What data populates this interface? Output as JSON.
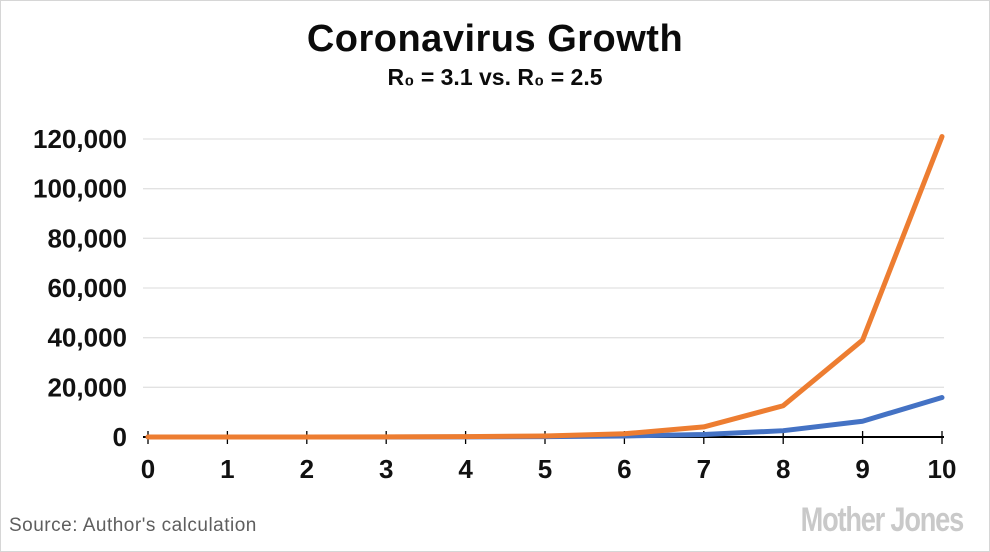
{
  "header": {
    "title": "Coronavirus Growth",
    "subtitle": "R₀ = 3.1 vs. R₀ = 2.5"
  },
  "footer": {
    "source": "Source: Author's calculation",
    "brand": "Mother Jones"
  },
  "chart_data": {
    "type": "line",
    "title": "Coronavirus Growth",
    "subtitle": "R₀ = 3.1 vs. R₀ = 2.5",
    "x": [
      0,
      1,
      2,
      3,
      4,
      5,
      6,
      7,
      8,
      9,
      10
    ],
    "xtick_labels": [
      "0",
      "1",
      "2",
      "3",
      "4",
      "5",
      "6",
      "7",
      "8",
      "9",
      "10"
    ],
    "series": [
      {
        "name": "R0 = 3.1",
        "color": "#ED7D31",
        "values": [
          1,
          4,
          14,
          44,
          136,
          422,
          1310,
          4061,
          12590,
          39029,
          120992
        ]
      },
      {
        "name": "R0 = 2.5",
        "color": "#4472C4",
        "values": [
          1,
          4,
          10,
          25,
          64,
          162,
          406,
          1017,
          2542,
          6357,
          15894
        ]
      }
    ],
    "ylim": [
      0,
      120000
    ],
    "yticks": [
      0,
      20000,
      40000,
      60000,
      80000,
      100000,
      120000
    ],
    "ytick_labels": [
      "0",
      "20,000",
      "40,000",
      "60,000",
      "80,000",
      "100,000",
      "120,000"
    ],
    "grid": true,
    "legend": "none",
    "gridline_color": "#e2e2e2",
    "axis_color": "#000000",
    "line_width": 5
  }
}
